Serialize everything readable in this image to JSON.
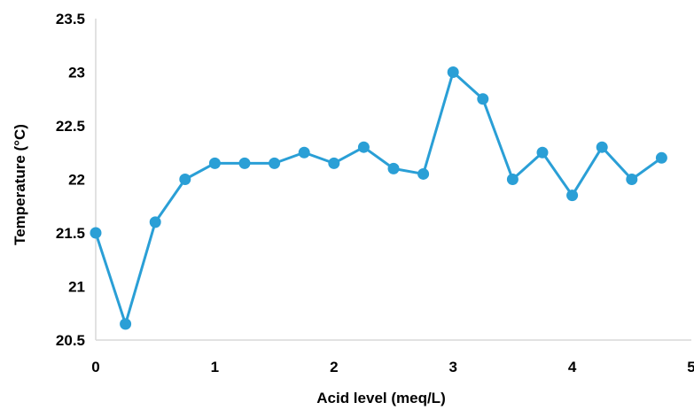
{
  "chart_data": {
    "type": "line",
    "xlabel": "Acid level (meq/L)",
    "ylabel": "Temperature (°C)",
    "xlim": [
      0,
      5
    ],
    "ylim": [
      20.5,
      23.5
    ],
    "x_ticks": [
      "0",
      "1",
      "2",
      "3",
      "4",
      "5"
    ],
    "y_ticks": [
      "20.5",
      "21",
      "21.5",
      "22",
      "22.5",
      "23",
      "23.5"
    ],
    "grid": false,
    "legend": "none",
    "series": [
      {
        "color": "#2A9FD6",
        "x": [
          0,
          0.25,
          0.5,
          0.75,
          1,
          1.25,
          1.5,
          1.75,
          2,
          2.25,
          2.5,
          2.75,
          3,
          3.25,
          3.5,
          3.75,
          4,
          4.25,
          4.5,
          4.75
        ],
        "y": [
          21.5,
          20.65,
          21.6,
          22.0,
          22.15,
          22.15,
          22.15,
          22.25,
          22.15,
          22.3,
          22.1,
          22.05,
          23.0,
          22.75,
          22.0,
          22.25,
          21.85,
          22.3,
          22.0,
          22.2
        ]
      }
    ],
    "colors": {
      "axis": "#D9D9D9",
      "text": "#000000"
    }
  }
}
